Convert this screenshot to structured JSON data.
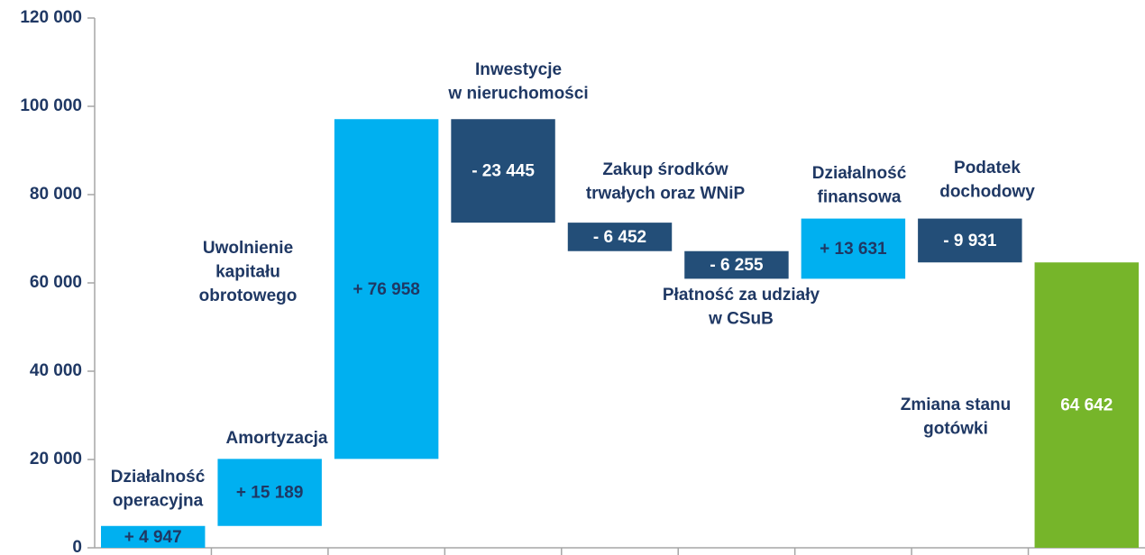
{
  "chart_data": {
    "type": "waterfall",
    "categories": [
      [
        "Działalność",
        "operacyjna"
      ],
      [
        "Amortyzacja"
      ],
      [
        "Uwolnienie",
        "kapitału",
        "obrotowego"
      ],
      [
        "Inwestycje",
        "w nieruchomości"
      ],
      [
        "Zakup środków",
        "trwałych oraz WNiP"
      ],
      [
        "Płatność za udziały",
        "w CSuB"
      ],
      [
        "Działalność",
        "finansowa"
      ],
      [
        "Podatek",
        "dochodowy"
      ],
      [
        "Zmiana stanu",
        "gotówki"
      ]
    ],
    "values": [
      4947,
      15189,
      76958,
      -23445,
      -6452,
      -6255,
      13631,
      -9931,
      64642
    ],
    "value_labels": [
      "+ 4 947",
      "+ 15 189",
      "+ 76 958",
      "- 23 445",
      "- 6 452",
      "- 6 255",
      "+ 13 631",
      "- 9 931",
      "64 642"
    ],
    "is_total": [
      false,
      false,
      false,
      false,
      false,
      false,
      false,
      false,
      true
    ],
    "colors": [
      "#00b0f0",
      "#00b0f0",
      "#00b0f0",
      "#234e78",
      "#234e78",
      "#234e78",
      "#00b0f0",
      "#234e78",
      "#76b52a"
    ],
    "ylim": [
      0,
      120000
    ],
    "yticks": [
      {
        "value": 0,
        "label": "0"
      },
      {
        "value": 20000,
        "label": "20 000"
      },
      {
        "value": 40000,
        "label": "40 000"
      },
      {
        "value": 60000,
        "label": "60 000"
      },
      {
        "value": 80000,
        "label": "80 000"
      },
      {
        "value": 100000,
        "label": "100 000"
      },
      {
        "value": 120000,
        "label": "120 000"
      }
    ],
    "grid": false
  }
}
